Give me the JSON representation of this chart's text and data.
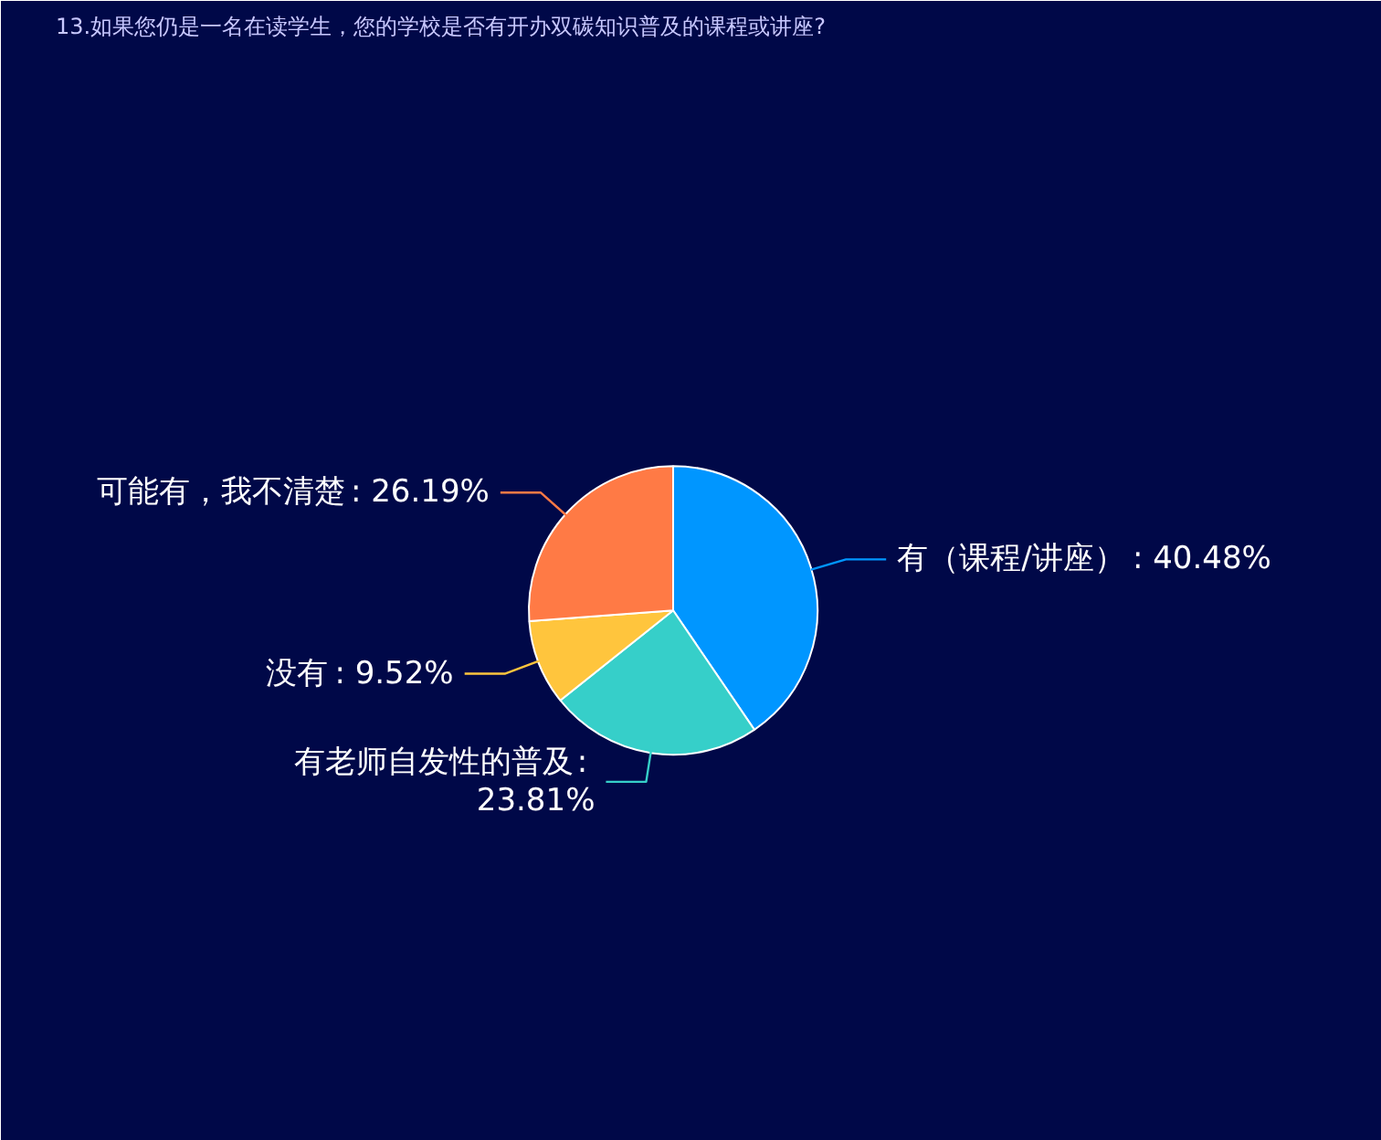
{
  "chart_data": {
    "type": "pie",
    "title": "13.如果您仍是一名在读学生，您的学校是否有开办双碳知识普及的课程或讲座?",
    "categories": [
      "有（课程/讲座）",
      "有老师自发性的普及",
      "没有",
      "可能有，我不清楚"
    ],
    "value_labels": [
      ": 40.48%",
      ":\n23.81%",
      ": 9.52%",
      ": 26.19%"
    ],
    "values": [
      40.48,
      23.81,
      9.52,
      26.19
    ],
    "colors": [
      "#0096ff",
      "#36cfc9",
      "#ffc53d",
      "#ff7a45"
    ]
  }
}
